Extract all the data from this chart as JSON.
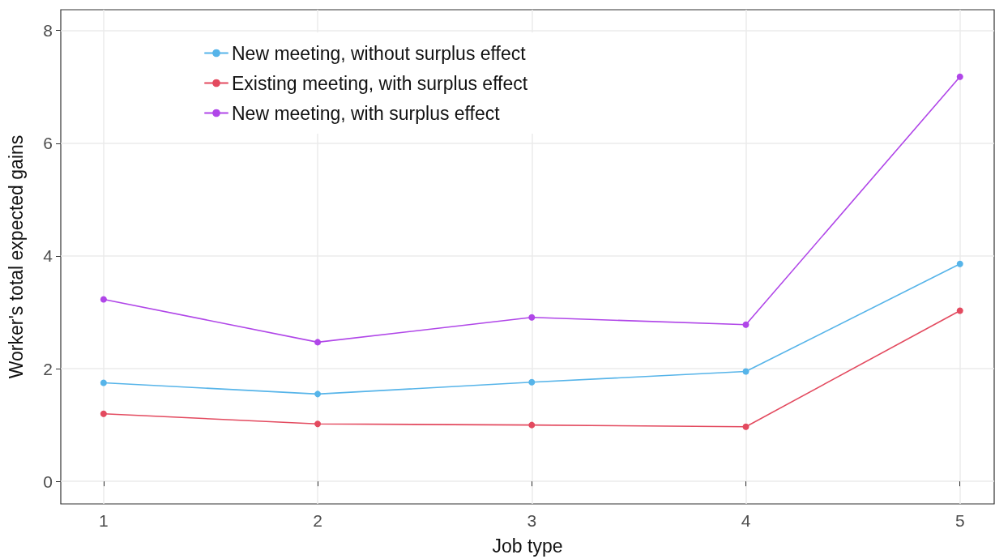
{
  "chart_data": {
    "type": "line",
    "xlabel": "Job type",
    "ylabel": "Worker's total expected gains",
    "x": [
      1,
      2,
      3,
      4,
      5
    ],
    "series": [
      {
        "name": "New meeting, without surplus effect",
        "color": "#56b4e9",
        "values": [
          1.75,
          1.55,
          1.76,
          1.95,
          3.86
        ]
      },
      {
        "name": "Existing meeting, with surplus effect",
        "color": "#e34a5f",
        "values": [
          1.2,
          1.02,
          1.0,
          0.97,
          3.03
        ]
      },
      {
        "name": "New meeting, with surplus effect",
        "color": "#b046e8",
        "values": [
          3.23,
          2.47,
          2.91,
          2.78,
          7.18
        ]
      }
    ],
    "xlim": [
      0.8,
      5.16
    ],
    "xticks": [
      1,
      2,
      3,
      4,
      5
    ],
    "ylim": [
      -0.4,
      8.37
    ],
    "yticks": [
      0,
      2,
      4,
      6,
      8
    ],
    "grid": true,
    "legend": "top left",
    "marker": "circle",
    "line_style": "solid"
  }
}
